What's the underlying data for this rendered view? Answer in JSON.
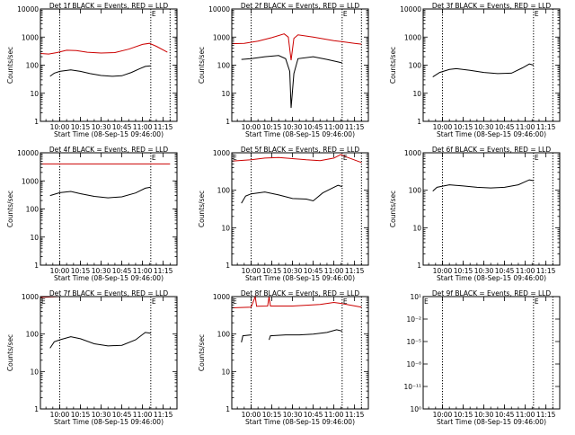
{
  "chart_data": [
    {
      "type": "line",
      "title": "Det 1f BLACK = Events, RED = LLD",
      "xlabel": "Start Time (08-Sep-15 09:46:00)",
      "ylabel": "Counts/sec",
      "y_scale": "log",
      "ylim": [
        1,
        10000
      ],
      "yticks": [
        "1",
        "10",
        "100",
        "1000",
        "10000"
      ],
      "xticks": [
        "10:00",
        "10:15",
        "10:30",
        "10:45",
        "11:00",
        "11:15"
      ],
      "vlines": [
        "10:00",
        "11:06",
        "11:20"
      ],
      "markers": [
        {
          "label": "E",
          "at": "11:06"
        }
      ],
      "series": [
        {
          "color": "#000000",
          "points": [
            [
              "9:53",
              40
            ],
            [
              "9:56",
              52
            ],
            [
              "10:00",
              60
            ],
            [
              "10:08",
              68
            ],
            [
              "10:15",
              60
            ],
            [
              "10:22",
              50
            ],
            [
              "10:30",
              43
            ],
            [
              "10:38",
              40
            ],
            [
              "10:45",
              42
            ],
            [
              "10:52",
              55
            ],
            [
              "10:58",
              75
            ],
            [
              "11:02",
              90
            ],
            [
              "11:06",
              95
            ]
          ]
        },
        {
          "color": "#cc0000",
          "points": [
            [
              "9:46",
              260
            ],
            [
              "9:52",
              250
            ],
            [
              "9:58",
              280
            ],
            [
              "10:05",
              340
            ],
            [
              "10:12",
              330
            ],
            [
              "10:20",
              290
            ],
            [
              "10:30",
              270
            ],
            [
              "10:40",
              280
            ],
            [
              "10:50",
              370
            ],
            [
              "11:00",
              550
            ],
            [
              "11:05",
              600
            ],
            [
              "11:10",
              470
            ],
            [
              "11:18",
              290
            ]
          ]
        }
      ]
    },
    {
      "type": "line",
      "title": "Det 2f BLACK = Events, RED = LLD",
      "xlabel": "Start Time (08-Sep-15 09:46:00)",
      "ylabel": "Counts/sec",
      "y_scale": "log",
      "ylim": [
        1,
        10000
      ],
      "yticks": [
        "1",
        "10",
        "100",
        "1000",
        "10000"
      ],
      "xticks": [
        "10:00",
        "10:15",
        "10:30",
        "10:45",
        "11:00",
        "11:15"
      ],
      "vlines": [
        "10:00",
        "11:06",
        "11:20"
      ],
      "markers": [
        {
          "label": "E",
          "at": "11:06"
        }
      ],
      "series": [
        {
          "color": "#000000",
          "points": [
            [
              "9:53",
              160
            ],
            [
              "10:00",
              170
            ],
            [
              "10:10",
              200
            ],
            [
              "10:20",
              220
            ],
            [
              "10:25",
              170
            ],
            [
              "10:28",
              60
            ],
            [
              "10:29",
              3
            ],
            [
              "10:31",
              50
            ],
            [
              "10:34",
              170
            ],
            [
              "10:45",
              200
            ],
            [
              "10:55",
              160
            ],
            [
              "11:03",
              130
            ],
            [
              "11:06",
              120
            ]
          ]
        },
        {
          "color": "#cc0000",
          "points": [
            [
              "9:46",
              580
            ],
            [
              "9:55",
              600
            ],
            [
              "10:05",
              720
            ],
            [
              "10:15",
              950
            ],
            [
              "10:24",
              1300
            ],
            [
              "10:27",
              1000
            ],
            [
              "10:29",
              150
            ],
            [
              "10:31",
              900
            ],
            [
              "10:34",
              1200
            ],
            [
              "10:45",
              1000
            ],
            [
              "11:00",
              750
            ],
            [
              "11:15",
              600
            ],
            [
              "11:20",
              560
            ]
          ]
        }
      ]
    },
    {
      "type": "line",
      "title": "Det 3f BLACK = Events, RED = LLD",
      "xlabel": "Start Time (08-Sep-15 09:46:00)",
      "ylabel": "Counts/sec",
      "y_scale": "log",
      "ylim": [
        1,
        10000
      ],
      "yticks": [
        "1",
        "10",
        "100",
        "1000",
        "10000"
      ],
      "xticks": [
        "10:00",
        "10:15",
        "10:30",
        "10:45",
        "11:00",
        "11:15"
      ],
      "vlines": [
        "10:00",
        "11:06",
        "11:20"
      ],
      "markers": [
        {
          "label": "E",
          "at": "11:06"
        }
      ],
      "series": [
        {
          "color": "#000000",
          "points": [
            [
              "9:53",
              38
            ],
            [
              "9:58",
              55
            ],
            [
              "10:05",
              70
            ],
            [
              "10:10",
              75
            ],
            [
              "10:20",
              65
            ],
            [
              "10:30",
              55
            ],
            [
              "10:40",
              50
            ],
            [
              "10:50",
              52
            ],
            [
              "10:58",
              80
            ],
            [
              "11:03",
              110
            ],
            [
              "11:06",
              100
            ]
          ]
        }
      ]
    },
    {
      "type": "line",
      "title": "Det 4f BLACK = Events, RED = LLD",
      "xlabel": "Start Time (08-Sep-15 09:46:00)",
      "ylabel": "Counts/sec",
      "y_scale": "log",
      "ylim": [
        1,
        10000
      ],
      "yticks": [
        "1",
        "10",
        "100",
        "1000",
        "10000"
      ],
      "xticks": [
        "10:00",
        "10:15",
        "10:30",
        "10:45",
        "11:00",
        "11:15"
      ],
      "vlines": [
        "10:00",
        "11:06"
      ],
      "markers": [
        {
          "label": "E",
          "at": "11:06"
        }
      ],
      "series": [
        {
          "color": "#000000",
          "points": [
            [
              "9:53",
              300
            ],
            [
              "10:00",
              380
            ],
            [
              "10:08",
              420
            ],
            [
              "10:15",
              350
            ],
            [
              "10:25",
              280
            ],
            [
              "10:35",
              250
            ],
            [
              "10:45",
              270
            ],
            [
              "10:55",
              370
            ],
            [
              "11:02",
              550
            ],
            [
              "11:06",
              600
            ]
          ]
        },
        {
          "color": "#cc0000",
          "points": [
            [
              "9:46",
              4000
            ],
            [
              "11:20",
              4000
            ]
          ]
        }
      ]
    },
    {
      "type": "line",
      "title": "Det 5f BLACK = Events, RED = LLD",
      "xlabel": "Start Time (08-Sep-15 09:46:00)",
      "ylabel": "Counts/sec",
      "y_scale": "log",
      "ylim": [
        1,
        1000
      ],
      "yticks": [
        "1",
        "10",
        "100",
        "1000"
      ],
      "xticks": [
        "10:00",
        "10:15",
        "10:30",
        "10:45",
        "11:00",
        "11:15"
      ],
      "vlines": [
        "10:00",
        "11:06",
        "11:20"
      ],
      "markers": [
        {
          "label": "E",
          "at": "9:46"
        },
        {
          "label": "E",
          "at": "11:06"
        }
      ],
      "series": [
        {
          "color": "#000000",
          "points": [
            [
              "9:53",
              45
            ],
            [
              "9:56",
              70
            ],
            [
              "10:00",
              80
            ],
            [
              "10:10",
              90
            ],
            [
              "10:20",
              75
            ],
            [
              "10:30",
              60
            ],
            [
              "10:40",
              58
            ],
            [
              "10:45",
              52
            ],
            [
              "10:52",
              85
            ],
            [
              "10:58",
              110
            ],
            [
              "11:03",
              135
            ],
            [
              "11:06",
              125
            ]
          ]
        },
        {
          "color": "#cc0000",
          "points": [
            [
              "9:46",
              600
            ],
            [
              "10:00",
              650
            ],
            [
              "10:10",
              720
            ],
            [
              "10:20",
              750
            ],
            [
              "10:30",
              700
            ],
            [
              "10:40",
              650
            ],
            [
              "10:50",
              620
            ],
            [
              "11:00",
              720
            ],
            [
              "11:05",
              900
            ],
            [
              "11:10",
              750
            ],
            [
              "11:20",
              550
            ]
          ]
        }
      ]
    },
    {
      "type": "line",
      "title": "Det 6f BLACK = Events, RED = LLD",
      "xlabel": "Start Time (08-Sep-15 09:46:00)",
      "ylabel": "Counts/sec",
      "y_scale": "log",
      "ylim": [
        1,
        1000
      ],
      "yticks": [
        "1",
        "10",
        "100",
        "1000"
      ],
      "xticks": [
        "10:00",
        "10:15",
        "10:30",
        "10:45",
        "11:00",
        "11:15"
      ],
      "vlines": [
        "10:00",
        "11:06",
        "11:20"
      ],
      "markers": [
        {
          "label": "E",
          "at": "11:06"
        }
      ],
      "series": [
        {
          "color": "#000000",
          "points": [
            [
              "9:53",
              95
            ],
            [
              "9:56",
              120
            ],
            [
              "10:05",
              140
            ],
            [
              "10:15",
              130
            ],
            [
              "10:25",
              120
            ],
            [
              "10:35",
              115
            ],
            [
              "10:45",
              120
            ],
            [
              "10:55",
              140
            ],
            [
              "11:03",
              190
            ],
            [
              "11:06",
              180
            ]
          ]
        }
      ]
    },
    {
      "type": "line",
      "title": "Det 7f BLACK = Events, RED = LLD",
      "xlabel": "Start Time (08-Sep-15 09:46:00)",
      "ylabel": "Counts/sec",
      "y_scale": "log",
      "ylim": [
        1,
        1000
      ],
      "yticks": [
        "1",
        "10",
        "100",
        "1000"
      ],
      "xticks": [
        "10:00",
        "10:15",
        "10:30",
        "10:45",
        "11:00",
        "11:15"
      ],
      "vlines": [
        "10:00",
        "11:06"
      ],
      "markers": [
        {
          "label": "E",
          "at": "9:46"
        },
        {
          "label": "E",
          "at": "11:06"
        }
      ],
      "series": [
        {
          "color": "#000000",
          "points": [
            [
              "9:53",
              42
            ],
            [
              "9:56",
              62
            ],
            [
              "10:00",
              70
            ],
            [
              "10:08",
              85
            ],
            [
              "10:15",
              75
            ],
            [
              "10:25",
              55
            ],
            [
              "10:35",
              48
            ],
            [
              "10:45",
              50
            ],
            [
              "10:55",
              70
            ],
            [
              "11:02",
              110
            ],
            [
              "11:06",
              105
            ]
          ]
        },
        {
          "color": "#cc0000",
          "points": [
            [
              "9:46",
              950
            ],
            [
              "10:00",
              1000
            ],
            [
              "10:30",
              1000
            ],
            [
              "11:00",
              1050
            ],
            [
              "11:20",
              1000
            ]
          ]
        }
      ]
    },
    {
      "type": "line",
      "title": "Det 8f BLACK = Events, RED = LLD",
      "xlabel": "Start Time (08-Sep-15 09:46:00)",
      "ylabel": "Counts/sec",
      "y_scale": "log",
      "ylim": [
        1,
        1000
      ],
      "yticks": [
        "1",
        "10",
        "100",
        "1000"
      ],
      "xticks": [
        "10:00",
        "10:15",
        "10:30",
        "10:45",
        "11:00",
        "11:15"
      ],
      "vlines": [
        "10:00",
        "11:06",
        "11:20"
      ],
      "markers": [
        {
          "label": "E",
          "at": "9:46"
        },
        {
          "label": "E",
          "at": "11:06"
        }
      ],
      "series": [
        {
          "color": "#000000",
          "points": [
            [
              "9:53",
              60
            ],
            [
              "9:54",
              90
            ],
            [
              "10:00",
              95
            ],
            [
              "10:04",
              null
            ],
            [
              "10:13",
              70
            ],
            [
              "10:14",
              90
            ],
            [
              "10:25",
              95
            ],
            [
              "10:35",
              95
            ],
            [
              "10:45",
              100
            ],
            [
              "10:55",
              110
            ],
            [
              "11:02",
              130
            ],
            [
              "11:06",
              120
            ]
          ]
        },
        {
          "color": "#cc0000",
          "points": [
            [
              "9:46",
              500
            ],
            [
              "10:00",
              520
            ],
            [
              "10:03",
              4000
            ],
            [
              "10:04",
              550
            ],
            [
              "10:12",
              560
            ],
            [
              "10:13",
              4000
            ],
            [
              "10:14",
              560
            ],
            [
              "10:30",
              560
            ],
            [
              "10:50",
              620
            ],
            [
              "11:00",
              700
            ],
            [
              "11:06",
              650
            ],
            [
              "11:20",
              520
            ]
          ]
        }
      ]
    },
    {
      "type": "line",
      "title": "Det 9f BLACK = Events, RED = LLD",
      "xlabel": "Start Time (08-Sep-15 09:46:00)",
      "ylabel": "",
      "y_scale": "log",
      "ylim": [
        1,
        10
      ],
      "yticks": [
        "10⁰",
        "10⁻¹¹",
        "10⁻⁸",
        "10⁻⁵",
        "10⁻²",
        "10¹"
      ],
      "xticks": [
        "10:00",
        "10:15",
        "10:30",
        "10:45",
        "11:00",
        "11:15"
      ],
      "vlines": [
        "10:00",
        "11:06",
        "11:20"
      ],
      "markers": [
        {
          "label": "E",
          "at": "9:46"
        },
        {
          "label": "E",
          "at": "11:06"
        }
      ],
      "series": []
    }
  ]
}
